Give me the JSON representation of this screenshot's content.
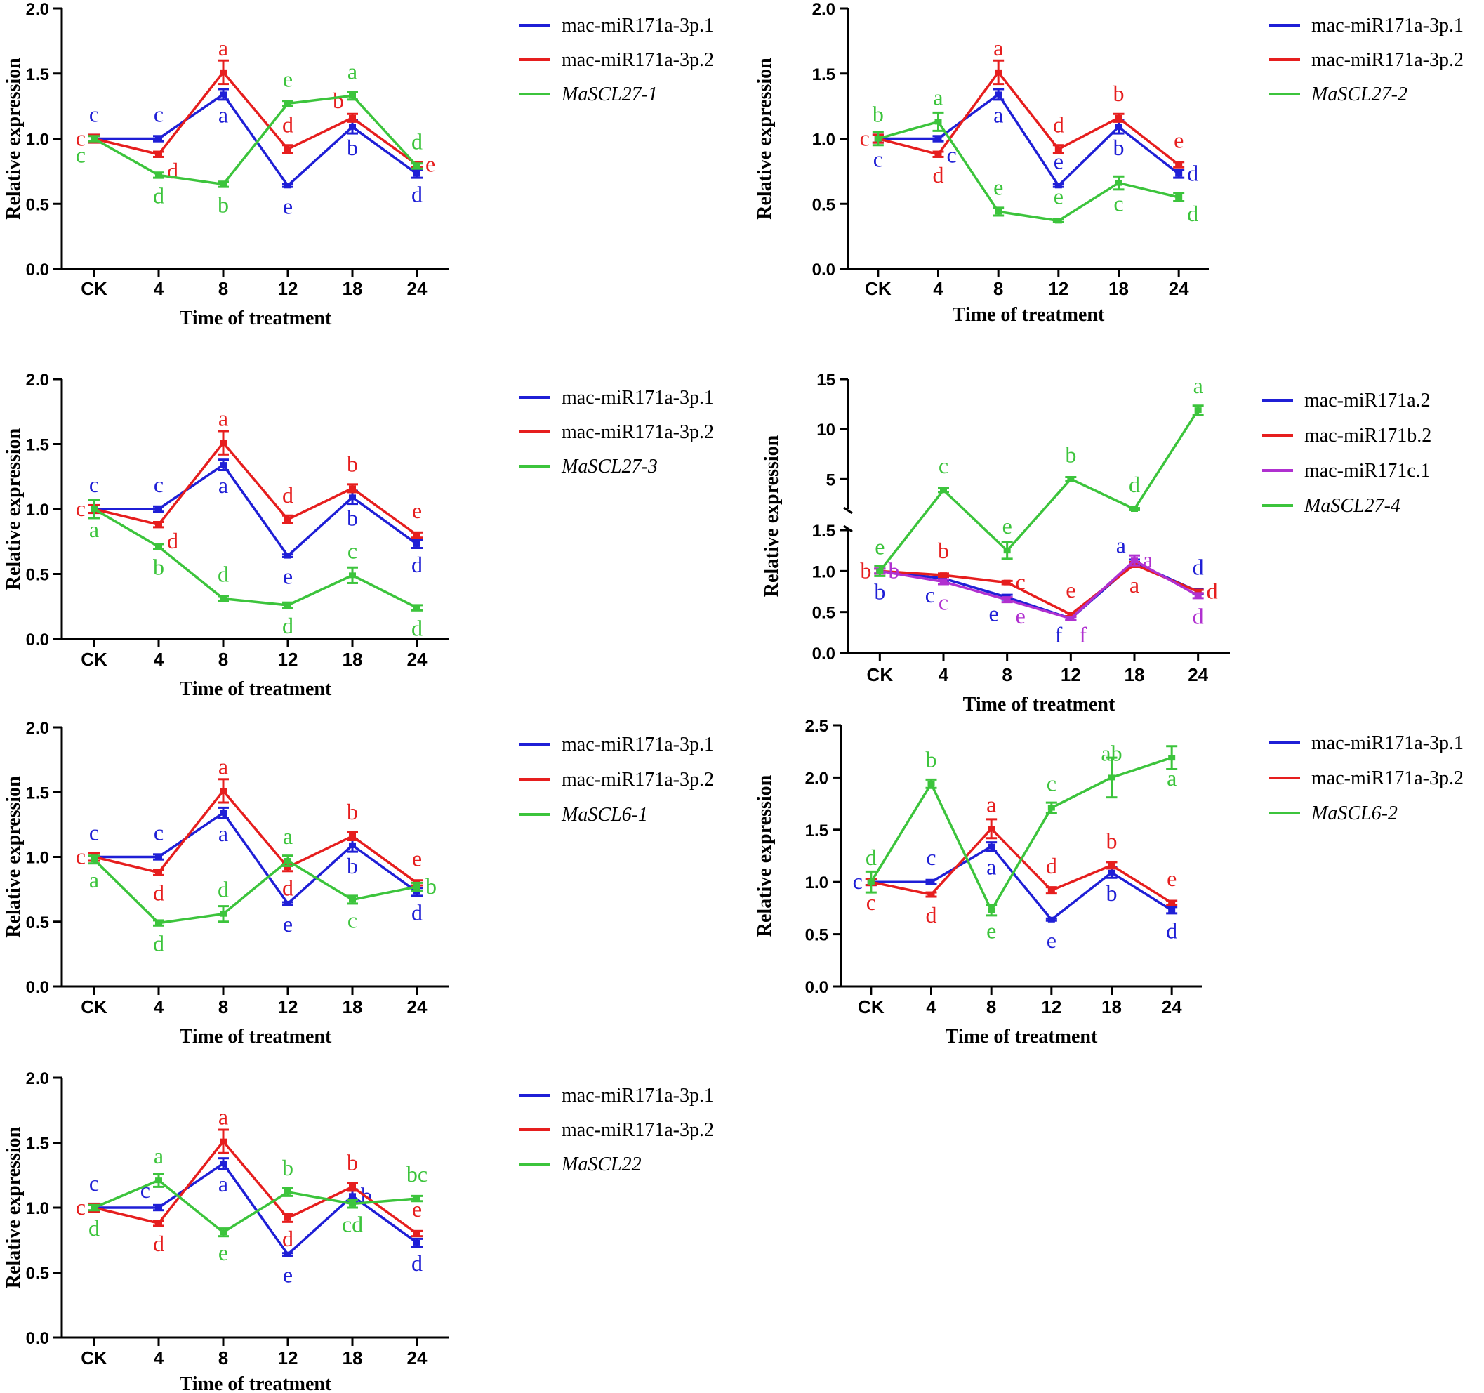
{
  "figure": {
    "colors": {
      "blue": "#1f1fd6",
      "red": "#e61e1e",
      "green": "#3cc43c",
      "purple": "#b030d0"
    }
  },
  "chart_data": [
    {
      "type": "line",
      "panel": "MaSCL27-1",
      "categories": [
        "CK",
        "4",
        "8",
        "12",
        "18",
        "24"
      ],
      "xlabel": "Time of treatment",
      "ylabel": "Relative expression",
      "ylim": [
        0,
        2.0
      ],
      "yticks": [
        "0.0",
        "0.5",
        "1.0",
        "1.5",
        "2.0"
      ],
      "series": [
        {
          "name": "mac-miR171a-3p.1",
          "italic": false,
          "color": "#1f1fd6",
          "values": [
            1.0,
            1.0,
            1.34,
            0.64,
            1.09,
            0.73
          ],
          "err": [
            0.03,
            0.02,
            0.04,
            0.01,
            0.05,
            0.03
          ],
          "letters": [
            "c",
            "c",
            "a",
            "e",
            "b",
            "d"
          ],
          "pos": [
            "above",
            "above",
            "below",
            "below",
            "below",
            "below"
          ]
        },
        {
          "name": "mac-miR171a-3p.2",
          "italic": false,
          "color": "#e61e1e",
          "values": [
            1.0,
            0.88,
            1.51,
            0.92,
            1.16,
            0.8
          ],
          "err": [
            0.03,
            0.02,
            0.09,
            0.03,
            0.03,
            0.02
          ],
          "letters": [
            "c",
            "d",
            "a",
            "d",
            "b",
            "e"
          ],
          "pos": [
            "left",
            "below-right",
            "above",
            "above",
            "above-left",
            "right"
          ]
        },
        {
          "name": "MaSCL27-1",
          "italic": true,
          "color": "#3cc43c",
          "values": [
            1.0,
            0.72,
            0.65,
            1.27,
            1.33,
            0.79
          ],
          "err": [
            0.02,
            0.02,
            0.02,
            0.02,
            0.03,
            0.02
          ],
          "letters": [
            "c",
            "d",
            "b",
            "e",
            "a",
            "d"
          ],
          "pos": [
            "below-left",
            "below",
            "below",
            "above",
            "above",
            "above"
          ]
        }
      ]
    },
    {
      "type": "line",
      "panel": "MaSCL27-2",
      "categories": [
        "CK",
        "4",
        "8",
        "12",
        "18",
        "24"
      ],
      "xlabel": "Time of treatment",
      "ylabel": "Relative expression",
      "ylim": [
        0,
        2.0
      ],
      "yticks": [
        "0.0",
        "0.5",
        "1.0",
        "1.5",
        "2.0"
      ],
      "series": [
        {
          "name": "mac-miR171a-3p.1",
          "italic": false,
          "color": "#1f1fd6",
          "values": [
            1.0,
            1.0,
            1.34,
            0.64,
            1.09,
            0.73
          ],
          "err": [
            0.03,
            0.02,
            0.04,
            0.01,
            0.05,
            0.03
          ],
          "letters": [
            "c",
            "c",
            "a",
            "e",
            "b",
            "d"
          ],
          "pos": [
            "below",
            "below-right",
            "below",
            "above",
            "below",
            "right"
          ]
        },
        {
          "name": "mac-miR171a-3p.2",
          "italic": false,
          "color": "#e61e1e",
          "values": [
            1.0,
            0.88,
            1.51,
            0.92,
            1.16,
            0.8
          ],
          "err": [
            0.03,
            0.02,
            0.09,
            0.03,
            0.03,
            0.02
          ],
          "letters": [
            "c",
            "d",
            "a",
            "d",
            "b",
            "e"
          ],
          "pos": [
            "left",
            "below",
            "above",
            "above",
            "above",
            "above"
          ]
        },
        {
          "name": "MaSCL27-2",
          "italic": true,
          "color": "#3cc43c",
          "values": [
            1.0,
            1.13,
            0.44,
            0.37,
            0.66,
            0.55
          ],
          "err": [
            0.05,
            0.07,
            0.03,
            0.01,
            0.05,
            0.03
          ],
          "letters": [
            "b",
            "a",
            "e",
            "e",
            "c",
            "d"
          ],
          "pos": [
            "above",
            "above",
            "above",
            "above",
            "below",
            "below-right"
          ]
        }
      ]
    },
    {
      "type": "line",
      "panel": "MaSCL27-3",
      "categories": [
        "CK",
        "4",
        "8",
        "12",
        "18",
        "24"
      ],
      "xlabel": "Time of treatment",
      "ylabel": "Relative expression",
      "ylim": [
        0,
        2.0
      ],
      "yticks": [
        "0.0",
        "0.5",
        "1.0",
        "1.5",
        "2.0"
      ],
      "series": [
        {
          "name": "mac-miR171a-3p.1",
          "italic": false,
          "color": "#1f1fd6",
          "values": [
            1.0,
            1.0,
            1.34,
            0.64,
            1.09,
            0.73
          ],
          "err": [
            0.03,
            0.02,
            0.04,
            0.01,
            0.05,
            0.03
          ],
          "letters": [
            "c",
            "c",
            "a",
            "e",
            "b",
            "d"
          ],
          "pos": [
            "above",
            "above",
            "below",
            "below",
            "below",
            "below"
          ]
        },
        {
          "name": "mac-miR171a-3p.2",
          "italic": false,
          "color": "#e61e1e",
          "values": [
            1.0,
            0.88,
            1.51,
            0.92,
            1.16,
            0.8
          ],
          "err": [
            0.03,
            0.02,
            0.09,
            0.03,
            0.03,
            0.02
          ],
          "letters": [
            "c",
            "d",
            "a",
            "d",
            "b",
            "e"
          ],
          "pos": [
            "left",
            "below-right",
            "above",
            "above",
            "above",
            "above"
          ]
        },
        {
          "name": "MaSCL27-3",
          "italic": true,
          "color": "#3cc43c",
          "values": [
            1.0,
            0.71,
            0.31,
            0.26,
            0.49,
            0.24
          ],
          "err": [
            0.07,
            0.02,
            0.02,
            0.02,
            0.06,
            0.02
          ],
          "letters": [
            "a",
            "b",
            "d",
            "d",
            "c",
            "d"
          ],
          "pos": [
            "below",
            "below",
            "above",
            "below",
            "above",
            "below"
          ]
        }
      ]
    },
    {
      "type": "line",
      "panel": "MaSCL27-4",
      "broken_axis": true,
      "categories": [
        "CK",
        "4",
        "8",
        "12",
        "18",
        "24"
      ],
      "xlabel": "Time of treatment",
      "ylabel": "Relative expression",
      "ylim": [
        0,
        15
      ],
      "yticks": [
        "0.0",
        "0.5",
        "1.0",
        "1.5",
        "5",
        "10",
        "15"
      ],
      "series": [
        {
          "name": "mac-miR171a.2",
          "italic": false,
          "color": "#1f1fd6",
          "values": [
            1.0,
            0.91,
            0.68,
            0.42,
            1.1,
            0.75
          ],
          "err": [
            0.03,
            0.03,
            0.03,
            0.02,
            0.04,
            0.03
          ],
          "letters": [
            "b",
            "c",
            "e",
            "f",
            "a",
            "d"
          ],
          "pos": [
            "below",
            "below-left",
            "below-left",
            "below-left",
            "above-left",
            "above"
          ]
        },
        {
          "name": "mac-miR171b.2",
          "italic": false,
          "color": "#e61e1e",
          "values": [
            1.0,
            0.95,
            0.86,
            0.47,
            1.08,
            0.75
          ],
          "err": [
            0.03,
            0.02,
            0.02,
            0.02,
            0.03,
            0.02
          ],
          "letters": [
            "b",
            "b",
            "c",
            "e",
            "a",
            "d"
          ],
          "pos": [
            "left",
            "above",
            "right",
            "above",
            "below",
            "right"
          ]
        },
        {
          "name": "mac-miR171c.1",
          "italic": false,
          "color": "#b030d0",
          "values": [
            1.0,
            0.87,
            0.65,
            0.42,
            1.13,
            0.7
          ],
          "err": [
            0.03,
            0.03,
            0.03,
            0.02,
            0.06,
            0.03
          ],
          "letters": [
            "b",
            "c",
            "e",
            "f",
            "a",
            "d"
          ],
          "pos": [
            "right",
            "below",
            "below-right",
            "below-right",
            "right",
            "below"
          ]
        },
        {
          "name": "MaSCL27-4",
          "italic": true,
          "color": "#3cc43c",
          "values": [
            1.0,
            3.9,
            1.25,
            5.0,
            2.0,
            11.9
          ],
          "err": [
            0.06,
            0.2,
            0.1,
            0.2,
            0.1,
            0.45
          ],
          "letters": [
            "e",
            "c",
            "e",
            "b",
            "d",
            "a"
          ],
          "pos": [
            "above",
            "above",
            "above",
            "above",
            "above",
            "above"
          ]
        }
      ]
    },
    {
      "type": "line",
      "panel": "MaSCL6-1",
      "categories": [
        "CK",
        "4",
        "8",
        "12",
        "18",
        "24"
      ],
      "xlabel": "Time of treatment",
      "ylabel": "Relative expression",
      "ylim": [
        0,
        2.0
      ],
      "yticks": [
        "0.0",
        "0.5",
        "1.0",
        "1.5",
        "2.0"
      ],
      "series": [
        {
          "name": "mac-miR171a-3p.1",
          "italic": false,
          "color": "#1f1fd6",
          "values": [
            1.0,
            1.0,
            1.34,
            0.64,
            1.09,
            0.73
          ],
          "err": [
            0.03,
            0.02,
            0.04,
            0.01,
            0.05,
            0.03
          ],
          "letters": [
            "c",
            "c",
            "a",
            "e",
            "b",
            "d"
          ],
          "pos": [
            "above",
            "above",
            "below",
            "below",
            "below",
            "below"
          ]
        },
        {
          "name": "mac-miR171a-3p.2",
          "italic": false,
          "color": "#e61e1e",
          "values": [
            1.0,
            0.88,
            1.51,
            0.92,
            1.16,
            0.8
          ],
          "err": [
            0.03,
            0.02,
            0.09,
            0.03,
            0.03,
            0.02
          ],
          "letters": [
            "c",
            "d",
            "a",
            "d",
            "b",
            "e"
          ],
          "pos": [
            "left",
            "below",
            "above",
            "below",
            "above",
            "above"
          ]
        },
        {
          "name": "MaSCL6-1",
          "italic": true,
          "color": "#3cc43c",
          "values": [
            0.98,
            0.49,
            0.56,
            0.97,
            0.67,
            0.77
          ],
          "err": [
            0.03,
            0.02,
            0.06,
            0.04,
            0.03,
            0.03
          ],
          "letters": [
            "a",
            "d",
            "d",
            "a",
            "c",
            "b"
          ],
          "pos": [
            "below",
            "below",
            "above",
            "above",
            "below",
            "right"
          ]
        }
      ]
    },
    {
      "type": "line",
      "panel": "MaSCL6-2",
      "categories": [
        "CK",
        "4",
        "8",
        "12",
        "18",
        "24"
      ],
      "xlabel": "Time of treatment",
      "ylabel": "Relative expression",
      "ylim": [
        0,
        2.5
      ],
      "yticks": [
        "0.0",
        "0.5",
        "1.0",
        "1.5",
        "2.0",
        "2.5"
      ],
      "series": [
        {
          "name": "mac-miR171a-3p.1",
          "italic": false,
          "color": "#1f1fd6",
          "values": [
            1.0,
            1.0,
            1.34,
            0.64,
            1.09,
            0.73
          ],
          "err": [
            0.03,
            0.02,
            0.04,
            0.01,
            0.05,
            0.03
          ],
          "letters": [
            "c",
            "c",
            "a",
            "e",
            "b",
            "d"
          ],
          "pos": [
            "left",
            "above",
            "below",
            "below",
            "below",
            "below"
          ]
        },
        {
          "name": "mac-miR171a-3p.2",
          "italic": false,
          "color": "#e61e1e",
          "values": [
            1.0,
            0.88,
            1.51,
            0.92,
            1.16,
            0.8
          ],
          "err": [
            0.03,
            0.02,
            0.09,
            0.03,
            0.03,
            0.02
          ],
          "letters": [
            "c",
            "d",
            "a",
            "d",
            "b",
            "e"
          ],
          "pos": [
            "below",
            "below",
            "above",
            "above",
            "above",
            "above"
          ]
        },
        {
          "name": "MaSCL6-2",
          "italic": true,
          "color": "#3cc43c",
          "values": [
            1.0,
            1.94,
            0.73,
            1.71,
            2.0,
            2.19
          ],
          "err": [
            0.1,
            0.04,
            0.05,
            0.05,
            0.19,
            0.11
          ],
          "letters": [
            "d",
            "b",
            "e",
            "c",
            "ab",
            "a"
          ],
          "pos": [
            "above",
            "above",
            "below",
            "above",
            "above",
            "below"
          ]
        }
      ]
    },
    {
      "type": "line",
      "panel": "MaSCL22",
      "categories": [
        "CK",
        "4",
        "8",
        "12",
        "18",
        "24"
      ],
      "xlabel": "Time of treatment",
      "ylabel": "Relative expression",
      "ylim": [
        0,
        2.0
      ],
      "yticks": [
        "0.0",
        "0.5",
        "1.0",
        "1.5",
        "2.0"
      ],
      "series": [
        {
          "name": "mac-miR171a-3p.1",
          "italic": false,
          "color": "#1f1fd6",
          "values": [
            1.0,
            1.0,
            1.34,
            0.64,
            1.09,
            0.73
          ],
          "err": [
            0.03,
            0.02,
            0.04,
            0.01,
            0.05,
            0.03
          ],
          "letters": [
            "c",
            "c",
            "a",
            "e",
            "b",
            "d"
          ],
          "pos": [
            "above",
            "above-left",
            "below",
            "below",
            "right",
            "below"
          ]
        },
        {
          "name": "mac-miR171a-3p.2",
          "italic": false,
          "color": "#e61e1e",
          "values": [
            1.0,
            0.88,
            1.51,
            0.92,
            1.16,
            0.8
          ],
          "err": [
            0.03,
            0.02,
            0.09,
            0.03,
            0.03,
            0.02
          ],
          "letters": [
            "c",
            "d",
            "a",
            "d",
            "b",
            "e"
          ],
          "pos": [
            "left",
            "below",
            "above",
            "below",
            "above",
            "above"
          ]
        },
        {
          "name": "MaSCL22",
          "italic": true,
          "color": "#3cc43c",
          "values": [
            1.0,
            1.21,
            0.81,
            1.12,
            1.03,
            1.07
          ],
          "err": [
            0.02,
            0.05,
            0.03,
            0.03,
            0.03,
            0.02
          ],
          "letters": [
            "d",
            "a",
            "e",
            "b",
            "cd",
            "bc"
          ],
          "pos": [
            "below",
            "above",
            "below",
            "above",
            "below",
            "above"
          ]
        }
      ]
    }
  ]
}
